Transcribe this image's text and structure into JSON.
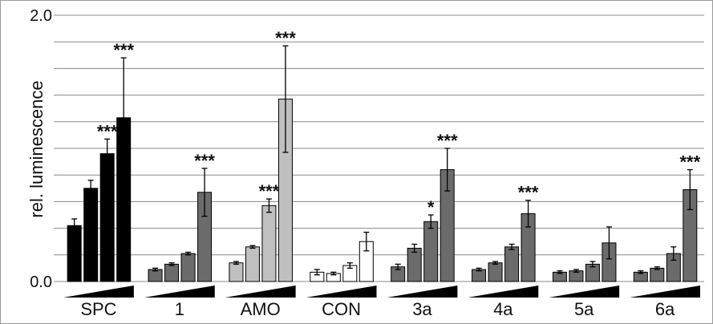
{
  "chart_data": {
    "type": "bar",
    "ylabel": "rel. luminescence",
    "ylim": [
      0,
      2.0
    ],
    "yticks": [
      0,
      0.2,
      0.4,
      0.6,
      0.8,
      1.0,
      1.2,
      1.4,
      1.6,
      1.8,
      2.0
    ],
    "ytick_labels_shown": {
      "0": "0.0",
      "2": "2.0"
    },
    "grid": "horizontal",
    "dose_ramp": "increasing wedge under each group",
    "groups": [
      {
        "label": "SPC",
        "color": "#000000",
        "values": [
          0.42,
          0.7,
          0.96,
          1.23
        ],
        "errors": [
          0.05,
          0.06,
          0.11,
          0.45
        ],
        "stars": [
          "",
          "",
          "***",
          "***"
        ]
      },
      {
        "label": "1",
        "color": "#6b6b6b",
        "values": [
          0.09,
          0.13,
          0.21,
          0.67
        ],
        "errors": [
          0.01,
          0.01,
          0.01,
          0.18
        ],
        "stars": [
          "",
          "",
          "",
          "***"
        ]
      },
      {
        "label": "AMO",
        "color": "#c0c0c0",
        "values": [
          0.14,
          0.26,
          0.57,
          1.37
        ],
        "errors": [
          0.01,
          0.01,
          0.05,
          0.4
        ],
        "stars": [
          "",
          "",
          "***",
          "***"
        ]
      },
      {
        "label": "CON",
        "color": "#ffffff",
        "values": [
          0.07,
          0.06,
          0.12,
          0.3
        ],
        "errors": [
          0.02,
          0.01,
          0.02,
          0.07
        ],
        "stars": [
          "",
          "",
          "",
          ""
        ]
      },
      {
        "label": "3a",
        "color": "#6b6b6b",
        "values": [
          0.11,
          0.25,
          0.45,
          0.84
        ],
        "errors": [
          0.02,
          0.03,
          0.05,
          0.16
        ],
        "stars": [
          "",
          "",
          "*",
          "***"
        ]
      },
      {
        "label": "4a",
        "color": "#6b6b6b",
        "values": [
          0.09,
          0.14,
          0.26,
          0.51
        ],
        "errors": [
          0.01,
          0.01,
          0.02,
          0.1
        ],
        "stars": [
          "",
          "",
          "",
          "***"
        ]
      },
      {
        "label": "5a",
        "color": "#6b6b6b",
        "values": [
          0.07,
          0.08,
          0.13,
          0.29
        ],
        "errors": [
          0.01,
          0.01,
          0.02,
          0.12
        ],
        "stars": [
          "",
          "",
          "",
          ""
        ]
      },
      {
        "label": "6a",
        "color": "#6b6b6b",
        "values": [
          0.07,
          0.1,
          0.21,
          0.69
        ],
        "errors": [
          0.01,
          0.01,
          0.05,
          0.15
        ],
        "stars": [
          "",
          "",
          "",
          "***"
        ]
      }
    ]
  }
}
